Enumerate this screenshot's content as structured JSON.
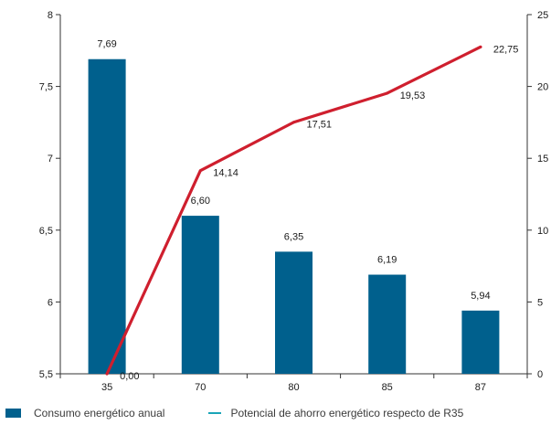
{
  "chart_data": {
    "type": "bar+line",
    "categories": [
      "35",
      "70",
      "80",
      "85",
      "87"
    ],
    "series": [
      {
        "name": "Consumo energético anual",
        "kind": "bar",
        "axis": "left",
        "color": "#00608d",
        "values": [
          7.69,
          6.6,
          6.35,
          6.19,
          5.94
        ],
        "labels": [
          "7,69",
          "6,60",
          "6,35",
          "6,19",
          "5,94"
        ]
      },
      {
        "name": "Potencial de ahorro energético respecto de R35",
        "kind": "line",
        "axis": "right",
        "color": "#cf1f2e",
        "legend_color": "#1aa5b8",
        "values": [
          0.0,
          14.14,
          17.51,
          19.53,
          22.75
        ],
        "labels": [
          "0,00",
          "14,14",
          "17,51",
          "19,53",
          "22,75"
        ]
      }
    ],
    "y_left": {
      "min": 5.5,
      "max": 8,
      "ticks": [
        "5,5",
        "6",
        "6,5",
        "7",
        "7,5",
        "8"
      ]
    },
    "y_right": {
      "min": 0,
      "max": 25,
      "ticks": [
        "0",
        "5",
        "10",
        "15",
        "20",
        "25"
      ]
    },
    "grid": false,
    "legend_position": "bottom-left"
  },
  "legend": {
    "bar_label": "Consumo energético anual",
    "line_label": "Potencial de ahorro energético respecto de R35"
  }
}
